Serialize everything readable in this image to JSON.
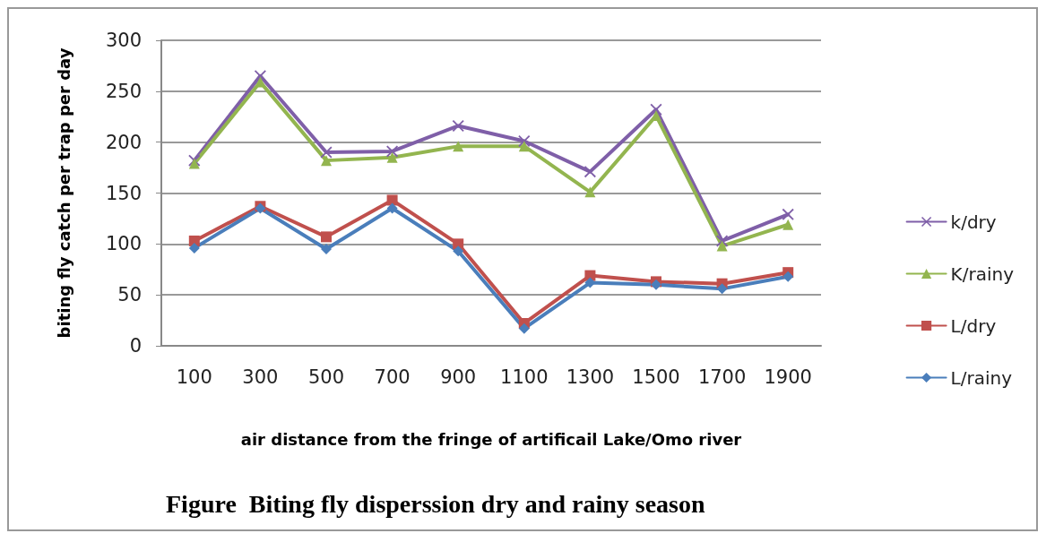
{
  "chart_data": {
    "type": "line",
    "title": "Figure  Biting fly disperssion dry and rainy season",
    "xlabel": "air distance from the fringe of artificail Lake/Omo river",
    "ylabel": "biting fly catch per trap per day",
    "categories": [
      "100",
      "300",
      "500",
      "700",
      "900",
      "1100",
      "1300",
      "1500",
      "1700",
      "1900"
    ],
    "series": [
      {
        "name": "k/dry",
        "color": "#7f5fa8",
        "marker": "cross",
        "values": [
          182,
          265,
          190,
          191,
          216,
          201,
          171,
          232,
          103,
          129
        ]
      },
      {
        "name": "K/rainy",
        "color": "#93b54f",
        "marker": "triangle",
        "values": [
          179,
          259,
          182,
          185,
          196,
          196,
          151,
          226,
          98,
          119
        ]
      },
      {
        "name": "L/dry",
        "color": "#c0504d",
        "marker": "square",
        "values": [
          103,
          137,
          107,
          143,
          100,
          22,
          69,
          63,
          61,
          72
        ]
      },
      {
        "name": "L/rainy",
        "color": "#4a7ebb",
        "marker": "diamond",
        "values": [
          96,
          135,
          95,
          135,
          93,
          17,
          62,
          60,
          56,
          68
        ]
      }
    ],
    "ylim": [
      0,
      300
    ],
    "yticks": [
      0,
      50,
      100,
      150,
      200,
      250,
      300
    ],
    "grid": "y",
    "legend": "right"
  }
}
